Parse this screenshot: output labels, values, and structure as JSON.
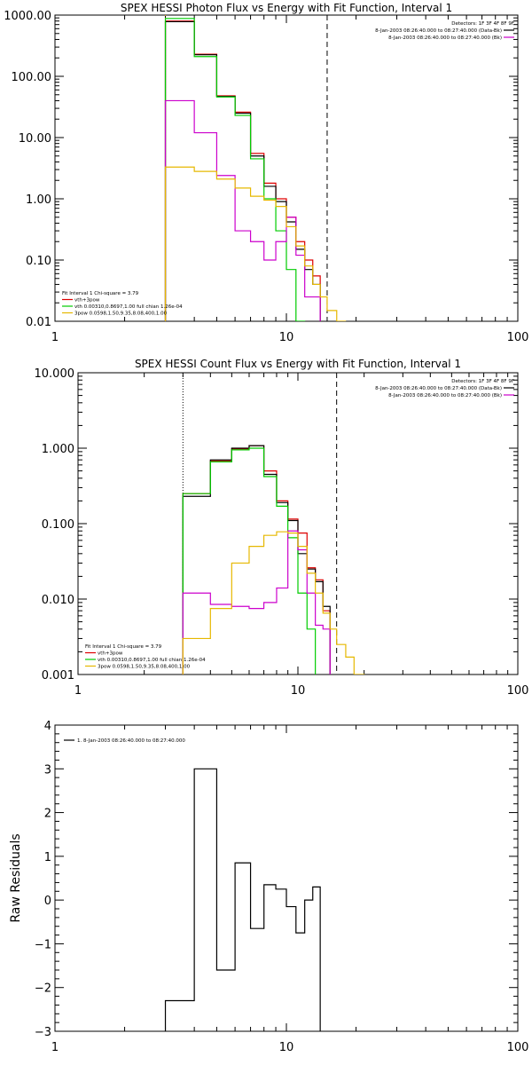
{
  "chart_data": [
    {
      "type": "line",
      "title": "SPEX HESSI Photon Flux vs Energy with Fit Function, Interval 1",
      "xscale": "log",
      "yscale": "log",
      "xlim": [
        1,
        100
      ],
      "ylim": [
        0.01,
        1000
      ],
      "x_ticks": [
        "1",
        "10",
        "100"
      ],
      "y_ticks": [
        "1000.00",
        "100.00",
        "10.00",
        "1.00",
        "0.10",
        "0.01"
      ],
      "y_tick_values": [
        1000,
        100,
        10,
        1,
        0.1,
        0.01
      ],
      "vlines": [
        {
          "x": 3.0,
          "style": "dotted",
          "color": "#e6a000"
        },
        {
          "x": 15.0,
          "style": "dashed",
          "color": "#000000"
        }
      ],
      "detectors": "Detectors: 1F 3F 4F 8F 9F",
      "legend_right": [
        {
          "text": "8-Jan-2003 08:26:40.000 to 08:27:40.000 (Data-Bk)",
          "color": "#000000"
        },
        {
          "text": "8-Jan-2003 08:26:40.000 to 08:27:40.000 (Bk)",
          "color": "#cc00cc"
        }
      ],
      "legend_left": [
        {
          "text": "Fit Interval 1   Chi-square = 3.79",
          "color": null
        },
        {
          "text": "vth+3pow",
          "color": "#dd0000"
        },
        {
          "text": "vth 0.00310,0.8697,1.00   full chian 1.26e-04",
          "color": "#00cc00"
        },
        {
          "text": "3pow 0.0598,1.50,9.35,8.08,400,1.00",
          "color": "#e6b800"
        }
      ],
      "bin_edges": [
        3.0,
        4.0,
        5.0,
        6.0,
        7.0,
        8.0,
        9.0,
        10.0,
        11.0,
        12.0,
        13.0,
        14.0,
        15.0,
        16.5,
        18.0
      ],
      "series": [
        {
          "name": "vth+3pow",
          "color": "#dd0000",
          "values": [
            800,
            230,
            48,
            26,
            5.5,
            1.8,
            1.0,
            0.5,
            0.2,
            0.1,
            0.055,
            null,
            null,
            null
          ]
        },
        {
          "name": "8-Jan-2003 08:26:40.000 to 08:27:40.000 (Data-Bk)",
          "color": "#000000",
          "values": [
            780,
            225,
            47,
            25,
            5.0,
            1.6,
            0.9,
            0.42,
            0.15,
            0.07,
            0.04,
            null,
            null,
            null
          ]
        },
        {
          "name": "vth 0.00310,0.8697,1.00   full chian 1.26e-04",
          "color": "#00cc00",
          "values": [
            880,
            210,
            46,
            23,
            4.5,
            1.0,
            0.3,
            0.07,
            0.01,
            null,
            null,
            null,
            null,
            null
          ]
        },
        {
          "name": "8-Jan-2003 08:26:40.000 to 08:27:40.000 (Bk)",
          "color": "#cc00cc",
          "values": [
            40,
            12,
            2.4,
            0.3,
            0.2,
            0.1,
            0.2,
            0.5,
            0.12,
            0.025,
            0.025,
            0.008,
            null,
            null
          ]
        },
        {
          "name": "3pow 0.0598,1.50,9.35,8.08,400,1.00",
          "color": "#e6b800",
          "values": [
            3.3,
            2.8,
            2.1,
            1.5,
            1.1,
            0.95,
            0.75,
            0.35,
            0.17,
            0.08,
            0.04,
            0.025,
            0.015,
            0.01
          ]
        }
      ]
    },
    {
      "type": "line",
      "title": "SPEX HESSI Count Flux vs Energy with Fit Function, Interval 1",
      "xscale": "log",
      "yscale": "log",
      "xlim": [
        1,
        100
      ],
      "ylim": [
        0.001,
        10
      ],
      "x_ticks": [
        "1",
        "10",
        "100"
      ],
      "y_ticks": [
        "10.000",
        "1.000",
        "0.100",
        "0.010",
        "0.001"
      ],
      "y_tick_values": [
        10,
        1,
        0.1,
        0.01,
        0.001
      ],
      "vlines": [
        {
          "x": 3.0,
          "style": "dotted",
          "color": "#000000"
        },
        {
          "x": 15.0,
          "style": "dashed",
          "color": "#000000"
        }
      ],
      "detectors": "Detectors: 1F 3F 4F 8F 9F",
      "legend_right": [
        {
          "text": "8-Jan-2003 08:26:40.000 to 08:27:40.000 (Data-Bk)",
          "color": "#000000"
        },
        {
          "text": "8-Jan-2003 08:26:40.000 to 08:27:40.000 (Bk)",
          "color": "#cc00cc"
        }
      ],
      "legend_left": [
        {
          "text": "Fit Interval 1   Chi-square = 3.79",
          "color": null
        },
        {
          "text": "vth+3pow",
          "color": "#dd0000"
        },
        {
          "text": "vth 0.00310,0.8697,1.00   full chian 1.26e-04",
          "color": "#00cc00"
        },
        {
          "text": "3pow 0.0598,1.50,9.35,8.08,400,1.00",
          "color": "#e6b800"
        }
      ],
      "bin_edges": [
        3.0,
        4.0,
        5.0,
        6.0,
        7.0,
        8.0,
        9.0,
        10.0,
        11.0,
        12.0,
        13.0,
        14.0,
        15.0,
        16.5,
        18.0,
        20.0
      ],
      "series": [
        {
          "name": "vth+3pow",
          "color": "#dd0000",
          "values": [
            0.25,
            0.68,
            0.98,
            1.08,
            0.5,
            0.2,
            0.115,
            0.075,
            0.026,
            0.018,
            0.007,
            null,
            null,
            null,
            null
          ]
        },
        {
          "name": "8-Jan-2003 08:26:40.000 to 08:27:40.000 (Data-Bk)",
          "color": "#000000",
          "values": [
            0.23,
            0.7,
            1.0,
            1.08,
            0.45,
            0.19,
            0.11,
            0.04,
            0.025,
            0.017,
            0.008,
            null,
            null,
            null,
            null
          ]
        },
        {
          "name": "vth 0.00310,0.8697,1.00   full chian 1.26e-04",
          "color": "#00cc00",
          "values": [
            0.25,
            0.66,
            0.95,
            1.0,
            0.42,
            0.17,
            0.065,
            0.012,
            0.004,
            null,
            null,
            null,
            null,
            null,
            null
          ]
        },
        {
          "name": "8-Jan-2003 08:26:40.000 to 08:27:40.000 (Bk)",
          "color": "#cc00cc",
          "values": [
            0.012,
            0.0085,
            0.008,
            0.0075,
            0.009,
            0.014,
            0.08,
            0.045,
            0.012,
            0.0045,
            0.004,
            null,
            null,
            null,
            null
          ]
        },
        {
          "name": "3pow 0.0598,1.50,9.35,8.08,400,1.00",
          "color": "#e6b800",
          "values": [
            0.003,
            0.0075,
            0.03,
            0.05,
            0.07,
            0.078,
            0.075,
            0.05,
            0.022,
            0.012,
            0.0065,
            0.004,
            0.0025,
            0.0017,
            0.001
          ]
        }
      ]
    },
    {
      "type": "line",
      "xscale": "log",
      "xlim": [
        1,
        100
      ],
      "ylim": [
        -3,
        4
      ],
      "x_ticks": [
        "1",
        "10",
        "100"
      ],
      "y_ticks": [
        "4",
        "3",
        "2",
        "1",
        "0",
        "−1",
        "−2",
        "−3"
      ],
      "y_tick_values": [
        4,
        3,
        2,
        1,
        0,
        -1,
        -2,
        -3
      ],
      "ylabel": "Raw Residuals",
      "legend": [
        {
          "text": "1.  8-Jan-2003 08:26:40.000 to 08:27:40.000",
          "color": "#000000"
        }
      ],
      "bin_edges": [
        3.0,
        4.0,
        5.0,
        6.0,
        7.0,
        8.0,
        9.0,
        10.0,
        11.0,
        12.0,
        13.0,
        14.0,
        15.0
      ],
      "series": [
        {
          "name": "1.  8-Jan-2003 08:26:40.000 to 08:27:40.000",
          "color": "#000000",
          "values": [
            -2.3,
            3.0,
            -1.6,
            0.85,
            -0.65,
            0.35,
            0.25,
            -0.15,
            -0.75,
            0.0,
            0.3,
            null
          ]
        }
      ]
    }
  ]
}
